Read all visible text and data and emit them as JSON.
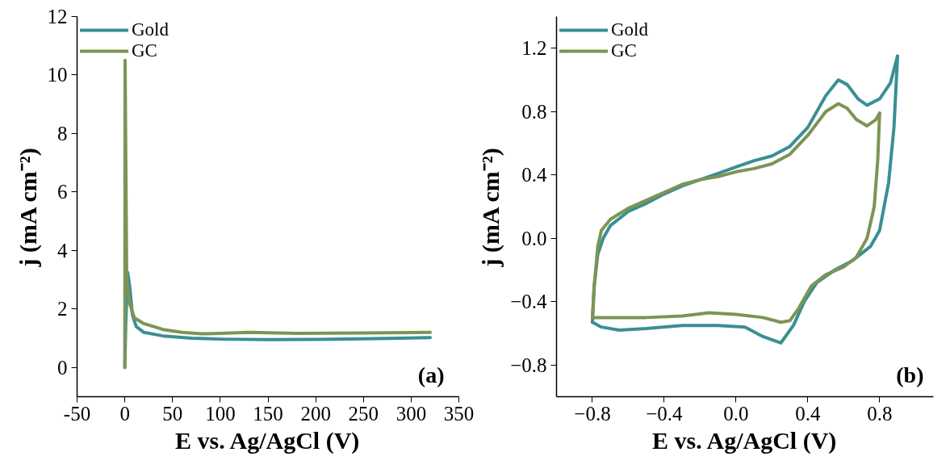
{
  "chart_data": [
    {
      "type": "line",
      "xlabel": "E vs. Ag/AgCl (V)",
      "ylabel": "j (mA cm⁻²)",
      "xlim": [
        -50,
        350
      ],
      "ylim": [
        -1,
        12
      ],
      "xticks": [
        -50,
        0,
        50,
        100,
        150,
        200,
        250,
        300,
        350
      ],
      "yticks": [
        0,
        2,
        4,
        6,
        8,
        10,
        12
      ],
      "grid": false,
      "legend": "top left",
      "annotations": [
        "(a)"
      ],
      "series": [
        {
          "name": "Gold",
          "color": "#3a8f94",
          "x": [
            0,
            1,
            3,
            5,
            8,
            12,
            20,
            40,
            70,
            100,
            150,
            200,
            250,
            320
          ],
          "values": [
            0,
            1.5,
            3.25,
            2.8,
            1.8,
            1.4,
            1.2,
            1.08,
            1.0,
            0.97,
            0.95,
            0.96,
            0.98,
            1.02
          ]
        },
        {
          "name": "GC",
          "color": "#7d9455",
          "x": [
            0,
            0.3,
            2,
            5,
            10,
            20,
            40,
            60,
            80,
            100,
            130,
            180,
            250,
            320
          ],
          "values": [
            0,
            10.5,
            3.0,
            2.2,
            1.7,
            1.5,
            1.3,
            1.2,
            1.15,
            1.17,
            1.2,
            1.17,
            1.18,
            1.2
          ]
        }
      ]
    },
    {
      "type": "line",
      "xlabel": "E vs. Ag/AgCl (V)",
      "ylabel": "j (mA cm⁻²)",
      "xlim": [
        -1.0,
        1.1
      ],
      "ylim": [
        -1.0,
        1.4
      ],
      "xticks": [
        {
          "value": -0.8,
          "label": "−0.8"
        },
        {
          "value": -0.4,
          "label": "−0.4"
        },
        {
          "value": 0.0,
          "label": "0.0"
        },
        {
          "value": 0.4,
          "label": "0.4"
        },
        {
          "value": 0.8,
          "label": "0.8"
        }
      ],
      "yticks": [
        {
          "value": -0.8,
          "label": "−0.8"
        },
        {
          "value": -0.4,
          "label": "−0.4"
        },
        {
          "value": 0.0,
          "label": "0.0"
        },
        {
          "value": 0.4,
          "label": "0.4"
        },
        {
          "value": 0.8,
          "label": "0.8"
        },
        {
          "value": 1.2,
          "label": "1.2"
        }
      ],
      "grid": false,
      "legend": "top left",
      "annotations": [
        "(b)"
      ],
      "series": [
        {
          "name": "Gold",
          "color": "#3a8f94",
          "x": [
            -0.8,
            -0.79,
            -0.77,
            -0.74,
            -0.7,
            -0.6,
            -0.5,
            -0.4,
            -0.3,
            -0.2,
            -0.1,
            0.0,
            0.1,
            0.2,
            0.3,
            0.4,
            0.5,
            0.57,
            0.62,
            0.68,
            0.73,
            0.8,
            0.86,
            0.9
          ],
          "values": [
            -0.53,
            -0.3,
            -0.1,
            0.0,
            0.08,
            0.17,
            0.22,
            0.28,
            0.33,
            0.37,
            0.41,
            0.45,
            0.49,
            0.52,
            0.58,
            0.7,
            0.9,
            1.0,
            0.97,
            0.88,
            0.84,
            0.88,
            0.98,
            1.15
          ]
        },
        {
          "color": "#3a8f94",
          "x": [
            0.9,
            0.88,
            0.85,
            0.8,
            0.75,
            0.65,
            0.55,
            0.45,
            0.38,
            0.32,
            0.25,
            0.15,
            0.05,
            -0.1,
            -0.3,
            -0.5,
            -0.65,
            -0.75,
            -0.8
          ],
          "values": [
            1.15,
            0.7,
            0.35,
            0.05,
            -0.05,
            -0.14,
            -0.2,
            -0.28,
            -0.4,
            -0.55,
            -0.66,
            -0.62,
            -0.56,
            -0.55,
            -0.55,
            -0.57,
            -0.58,
            -0.56,
            -0.53
          ]
        },
        {
          "name": "GC",
          "color": "#7d9455",
          "x": [
            -0.8,
            -0.79,
            -0.77,
            -0.75,
            -0.7,
            -0.6,
            -0.5,
            -0.4,
            -0.3,
            -0.2,
            -0.1,
            0.0,
            0.1,
            0.2,
            0.3,
            0.4,
            0.5,
            0.57,
            0.62,
            0.67,
            0.73,
            0.78,
            0.8
          ],
          "values": [
            -0.5,
            -0.3,
            -0.05,
            0.05,
            0.12,
            0.19,
            0.24,
            0.29,
            0.34,
            0.37,
            0.39,
            0.42,
            0.44,
            0.47,
            0.53,
            0.65,
            0.8,
            0.85,
            0.82,
            0.75,
            0.71,
            0.75,
            0.79
          ]
        },
        {
          "color": "#7d9455",
          "x": [
            0.8,
            0.79,
            0.77,
            0.73,
            0.67,
            0.6,
            0.5,
            0.42,
            0.35,
            0.3,
            0.25,
            0.15,
            0.0,
            -0.15,
            -0.3,
            -0.5,
            -0.65,
            -0.8
          ],
          "values": [
            0.79,
            0.5,
            0.2,
            0.0,
            -0.12,
            -0.18,
            -0.23,
            -0.3,
            -0.44,
            -0.52,
            -0.53,
            -0.5,
            -0.48,
            -0.47,
            -0.49,
            -0.5,
            -0.5,
            -0.5
          ]
        }
      ]
    }
  ]
}
